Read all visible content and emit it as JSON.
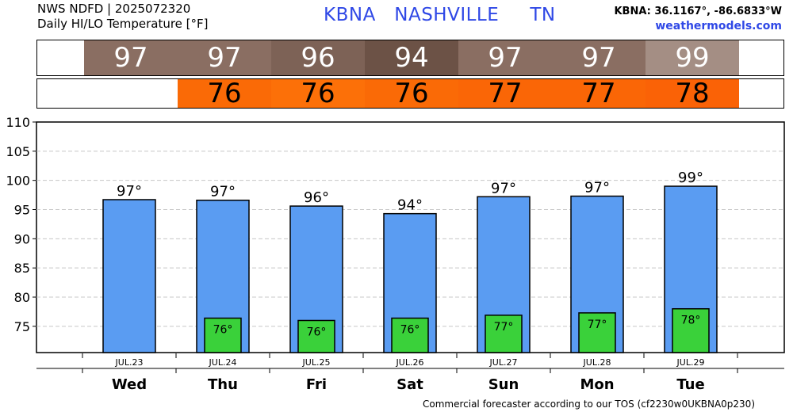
{
  "header": {
    "line1": "NWS NDFD | 2025072320",
    "line2": "Daily HI/LO Temperature [°F]",
    "station": "KBNA",
    "city": "NASHVILLE",
    "state": "TN",
    "coords": "KBNA: 36.1167°, -86.6833°W",
    "site": "weathermodels.com"
  },
  "hi_strip": [
    {
      "value": "97",
      "color": "#8a6e62"
    },
    {
      "value": "97",
      "color": "#8a6e62"
    },
    {
      "value": "96",
      "color": "#7d6256"
    },
    {
      "value": "94",
      "color": "#6c5246"
    },
    {
      "value": "97",
      "color": "#8a6e62"
    },
    {
      "value": "97",
      "color": "#8a6e62"
    },
    {
      "value": "99",
      "color": "#a48e84"
    }
  ],
  "lo_strip": [
    {
      "value": "76",
      "color": "#fa6a06"
    },
    {
      "value": "76",
      "color": "#fc7008"
    },
    {
      "value": "76",
      "color": "#fa6a06"
    },
    {
      "value": "77",
      "color": "#fa6606"
    },
    {
      "value": "77",
      "color": "#fa6606"
    },
    {
      "value": "78",
      "color": "#fa6206"
    }
  ],
  "chart_data": {
    "type": "bar",
    "categories": [
      "JUL.23",
      "JUL.24",
      "JUL.25",
      "JUL.26",
      "JUL.27",
      "JUL.28",
      "JUL.29"
    ],
    "days": [
      "Wed",
      "Thu",
      "Fri",
      "Sat",
      "Sun",
      "Mon",
      "Tue"
    ],
    "series": [
      {
        "values": [
          96.7,
          96.6,
          95.6,
          94.3,
          97.2,
          97.3,
          99.0
        ],
        "labels": [
          "97°",
          "97°",
          "96°",
          "94°",
          "97°",
          "97°",
          "99°"
        ],
        "color": "#5a9cf2"
      },
      {
        "values": [
          null,
          76.4,
          76.0,
          76.4,
          76.9,
          77.3,
          78.0
        ],
        "labels": [
          "",
          "76°",
          "76°",
          "76°",
          "77°",
          "77°",
          "78°"
        ],
        "color": "#3ad13a"
      }
    ],
    "yticks": [
      "110",
      "105",
      "100",
      "95",
      "90",
      "85",
      "80",
      "75"
    ],
    "ylim": [
      70.5,
      110
    ],
    "grid": true,
    "legend": "none"
  },
  "footer": "Commercial forecaster according to our TOS (cf2230w0UKBNA0p230)"
}
